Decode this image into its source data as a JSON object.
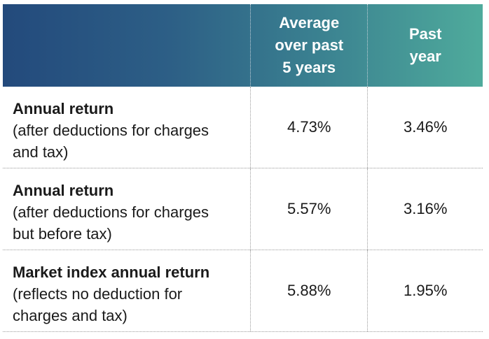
{
  "header": {
    "label": "",
    "avg_5y": "Average\nover past\n5 years",
    "past_year": "Past\nyear"
  },
  "rows": [
    {
      "title": "Annual return",
      "desc": "(after deductions for charges\nand tax)",
      "avg_5y": "4.73%",
      "past_year": "3.46%"
    },
    {
      "title": "Annual return",
      "desc": "(after deductions for charges\nbut before tax)",
      "avg_5y": "5.57%",
      "past_year": "3.16%"
    },
    {
      "title": "Market index annual return",
      "desc": "(reflects no deduction for\ncharges and tax)",
      "avg_5y": "5.88%",
      "past_year": "1.95%"
    }
  ]
}
